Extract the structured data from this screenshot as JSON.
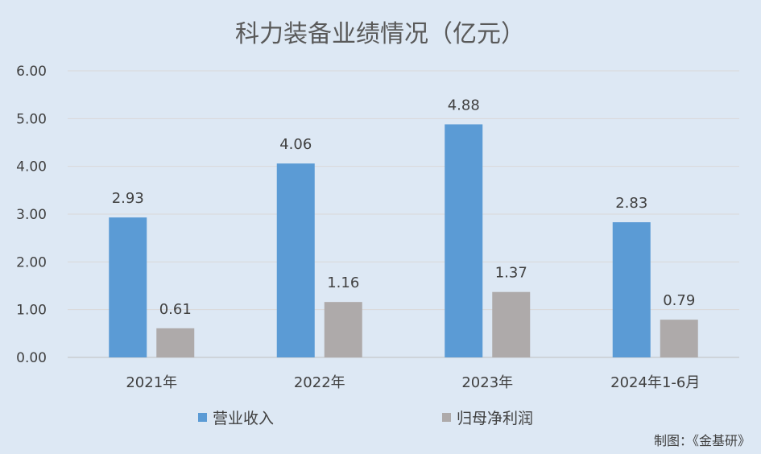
{
  "chart_data": {
    "type": "bar",
    "title": "科力装备业绩情况（亿元）",
    "categories": [
      "2021年",
      "2022年",
      "2023年",
      "2024年1-6月"
    ],
    "series": [
      {
        "name": "营业收入",
        "values": [
          2.93,
          4.06,
          4.88,
          2.83
        ],
        "color": "#5b9bd5"
      },
      {
        "name": "归母净利润",
        "values": [
          0.61,
          1.16,
          1.37,
          0.79
        ],
        "color": "#aeaaaa"
      }
    ],
    "yticks": [
      "0.00",
      "1.00",
      "2.00",
      "3.00",
      "4.00",
      "5.00",
      "6.00"
    ],
    "ylim": [
      0,
      6
    ],
    "grid": true,
    "legend_position": "bottom",
    "credit": "制图：《金基研》",
    "colors": {
      "background": "#dde8f4",
      "grid": "#d9d9d9"
    }
  }
}
